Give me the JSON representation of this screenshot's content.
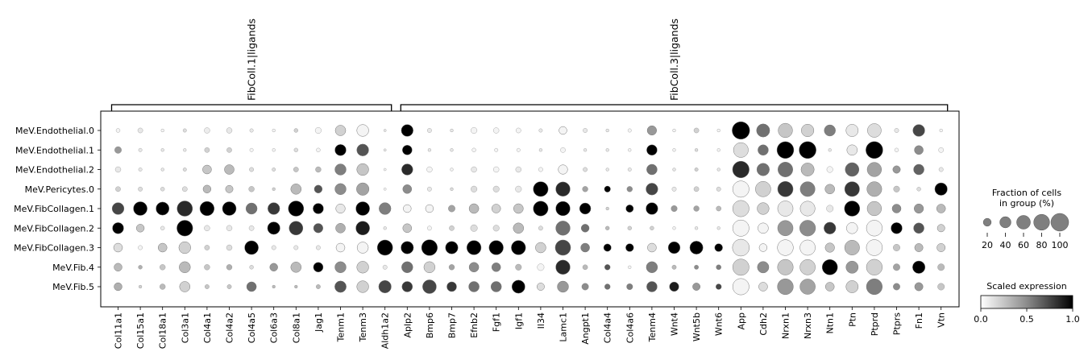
{
  "chart_data": {
    "type": "dotplot",
    "rows": [
      "MeV.Endothelial.0",
      "MeV.Endothelial.1",
      "MeV.Endothelial.2",
      "MeV.Pericytes.0",
      "MeV.FibCollagen.1",
      "MeV.FibCollagen.2",
      "MeV.FibCollagen.3",
      "MeV.Fib.4",
      "MeV.Fib.5"
    ],
    "columns": [
      "Col11a1",
      "Col15a1",
      "Col18a1",
      "Col3a1",
      "Col4a1",
      "Col4a2",
      "Col4a5",
      "Col6a3",
      "Col8a1",
      "Jag1",
      "Tenm1",
      "Tenm3",
      "Aldh1a2",
      "Aplp2",
      "Bmp6",
      "Bmp7",
      "Efnb2",
      "Fgf1",
      "Igf1",
      "Il34",
      "Lamc1",
      "Angpt1",
      "Col4a4",
      "Col4a6",
      "Tenm4",
      "Wnt4",
      "Wnt5b",
      "Wnt6",
      "App",
      "Cdh2",
      "Nrxn1",
      "Nrxn3",
      "Ntn1",
      "Ptn",
      "Ptprd",
      "Ptprs",
      "Fn1",
      "Vtn"
    ],
    "groups": [
      {
        "label": "FibColl.1|ligands",
        "start": 0,
        "end": 12
      },
      {
        "label": "FibColl.3|ligands",
        "start": 13,
        "end": 37
      }
    ],
    "fraction_pct": [
      [
        5,
        8,
        3,
        4,
        10,
        10,
        4,
        3,
        5,
        12,
        35,
        45,
        2,
        45,
        6,
        3,
        12,
        10,
        8,
        4,
        20,
        6,
        3,
        4,
        28,
        3,
        8,
        3,
        98,
        55,
        65,
        50,
        40,
        48,
        60,
        6,
        45,
        3
      ],
      [
        15,
        4,
        3,
        3,
        8,
        8,
        4,
        3,
        5,
        5,
        40,
        45,
        2,
        30,
        3,
        3,
        5,
        4,
        4,
        3,
        8,
        3,
        3,
        3,
        35,
        3,
        3,
        3,
        70,
        35,
        90,
        92,
        3,
        35,
        92,
        5,
        25,
        8
      ],
      [
        10,
        4,
        3,
        4,
        25,
        30,
        6,
        4,
        8,
        10,
        40,
        45,
        2,
        40,
        10,
        3,
        10,
        10,
        10,
        6,
        28,
        6,
        3,
        4,
        35,
        3,
        4,
        3,
        88,
        50,
        70,
        55,
        12,
        60,
        65,
        18,
        35,
        6
      ],
      [
        8,
        6,
        5,
        8,
        20,
        18,
        10,
        3,
        35,
        20,
        40,
        50,
        2,
        25,
        6,
        3,
        12,
        12,
        12,
        70,
        65,
        10,
        12,
        10,
        45,
        6,
        8,
        6,
        85,
        75,
        75,
        70,
        30,
        70,
        70,
        12,
        5,
        50
      ],
      [
        45,
        60,
        55,
        75,
        65,
        60,
        40,
        45,
        75,
        35,
        28,
        60,
        45,
        20,
        20,
        15,
        30,
        25,
        30,
        70,
        65,
        40,
        3,
        18,
        45,
        12,
        10,
        8,
        85,
        45,
        75,
        70,
        15,
        75,
        65,
        25,
        28,
        25
      ],
      [
        40,
        20,
        5,
        80,
        10,
        10,
        8,
        50,
        60,
        28,
        30,
        60,
        3,
        25,
        6,
        8,
        15,
        12,
        35,
        6,
        65,
        20,
        5,
        5,
        5,
        3,
        3,
        3,
        85,
        35,
        75,
        80,
        45,
        40,
        80,
        40,
        35,
        18
      ],
      [
        25,
        6,
        25,
        45,
        8,
        10,
        60,
        6,
        6,
        6,
        25,
        40,
        75,
        50,
        80,
        50,
        65,
        65,
        65,
        35,
        75,
        25,
        18,
        20,
        25,
        45,
        55,
        20,
        90,
        20,
        80,
        75,
        28,
        70,
        82,
        15,
        22,
        22
      ],
      [
        20,
        5,
        10,
        40,
        10,
        10,
        5,
        20,
        35,
        30,
        40,
        45,
        6,
        40,
        40,
        10,
        30,
        25,
        12,
        15,
        65,
        8,
        10,
        3,
        40,
        6,
        6,
        8,
        85,
        42,
        78,
        75,
        75,
        48,
        80,
        15,
        50,
        15
      ],
      [
        20,
        3,
        10,
        35,
        6,
        6,
        30,
        3,
        3,
        6,
        42,
        45,
        50,
        35,
        60,
        30,
        35,
        35,
        55,
        18,
        40,
        15,
        10,
        12,
        35,
        28,
        18,
        10,
        85,
        25,
        80,
        75,
        25,
        48,
        80,
        15,
        22,
        15
      ]
    ],
    "scaled_expression": [
      [
        0.05,
        0.1,
        0.05,
        0.15,
        0.08,
        0.1,
        0.1,
        0.05,
        0.2,
        0.05,
        0.2,
        0.05,
        0.1,
        1.0,
        0.1,
        0.1,
        0.05,
        0.05,
        0.05,
        0.1,
        0.05,
        0.1,
        0.1,
        0.05,
        0.45,
        0.05,
        0.2,
        0.05,
        1.0,
        0.6,
        0.25,
        0.2,
        0.55,
        0.1,
        0.15,
        0.1,
        0.75,
        0.05
      ],
      [
        0.45,
        0.1,
        0.1,
        0.1,
        0.2,
        0.2,
        0.05,
        0.05,
        0.15,
        0.05,
        1.0,
        0.7,
        0.1,
        1.0,
        0.1,
        0.1,
        0.05,
        0.05,
        0.05,
        0.1,
        0.05,
        0.1,
        0.1,
        0.05,
        1.0,
        0.05,
        0.15,
        0.05,
        0.15,
        0.6,
        1.0,
        1.0,
        0.1,
        0.1,
        1.0,
        0.05,
        0.5,
        0.05
      ],
      [
        0.1,
        0.1,
        0.1,
        0.15,
        0.25,
        0.3,
        0.15,
        0.15,
        0.25,
        0.3,
        0.55,
        0.25,
        0.05,
        0.85,
        0.05,
        0.05,
        0.1,
        0.05,
        0.1,
        0.05,
        0.05,
        0.15,
        0.1,
        0.1,
        0.6,
        0.1,
        0.2,
        0.1,
        0.85,
        0.6,
        0.6,
        0.3,
        0.05,
        0.65,
        0.4,
        0.45,
        0.65,
        0.1
      ],
      [
        0.2,
        0.15,
        0.15,
        0.15,
        0.3,
        0.25,
        0.25,
        0.2,
        0.3,
        0.7,
        0.5,
        0.4,
        0.05,
        0.5,
        0.1,
        0.15,
        0.15,
        0.15,
        0.1,
        1.0,
        0.85,
        0.4,
        1.0,
        0.5,
        0.75,
        0.1,
        0.2,
        0.15,
        0.05,
        0.2,
        0.8,
        0.55,
        0.3,
        0.8,
        0.35,
        0.25,
        0.15,
        1.0
      ],
      [
        0.75,
        1.0,
        1.0,
        0.85,
        1.0,
        1.0,
        0.6,
        0.8,
        1.0,
        1.0,
        0.1,
        1.0,
        0.55,
        0.05,
        0.05,
        0.4,
        0.3,
        0.2,
        0.25,
        1.0,
        1.0,
        1.0,
        0.2,
        1.0,
        1.0,
        0.45,
        0.4,
        0.3,
        0.15,
        0.2,
        0.1,
        0.1,
        0.1,
        1.0,
        0.25,
        0.5,
        0.45,
        0.3
      ],
      [
        1.0,
        0.25,
        0.1,
        1.0,
        0.1,
        0.1,
        0.1,
        1.0,
        0.8,
        0.7,
        0.35,
        0.9,
        0.1,
        0.25,
        0.05,
        0.2,
        0.15,
        0.15,
        0.3,
        0.15,
        0.6,
        0.6,
        0.3,
        0.2,
        0.2,
        0.05,
        0.1,
        0.1,
        0.05,
        0.05,
        0.45,
        0.5,
        0.8,
        0.05,
        0.05,
        1.0,
        0.7,
        0.2
      ],
      [
        0.15,
        0.05,
        0.25,
        0.2,
        0.2,
        0.15,
        1.0,
        0.1,
        0.1,
        0.1,
        0.05,
        0.05,
        1.0,
        1.0,
        1.0,
        1.0,
        1.0,
        1.0,
        1.0,
        0.2,
        0.75,
        0.55,
        1.0,
        1.0,
        0.15,
        1.0,
        1.0,
        1.0,
        0.1,
        0.05,
        0.05,
        0.05,
        0.25,
        0.3,
        0.05,
        0.25,
        0.3,
        0.2
      ],
      [
        0.3,
        0.35,
        0.25,
        0.3,
        0.25,
        0.35,
        0.15,
        0.45,
        0.3,
        1.0,
        0.5,
        0.2,
        0.1,
        0.6,
        0.2,
        0.4,
        0.5,
        0.55,
        0.3,
        0.05,
        0.85,
        0.3,
        0.7,
        0.05,
        0.55,
        0.3,
        0.5,
        0.55,
        0.2,
        0.5,
        0.25,
        0.2,
        1.0,
        0.45,
        0.2,
        0.4,
        1.0,
        0.3
      ],
      [
        0.35,
        0.2,
        0.3,
        0.2,
        0.25,
        0.25,
        0.6,
        0.3,
        0.3,
        0.3,
        0.7,
        0.2,
        0.75,
        0.8,
        0.75,
        0.8,
        0.6,
        0.6,
        1.0,
        0.15,
        0.45,
        0.5,
        0.6,
        0.55,
        0.7,
        0.9,
        0.45,
        0.75,
        0.05,
        0.15,
        0.45,
        0.4,
        0.25,
        0.2,
        0.55,
        0.5,
        0.45,
        0.25
      ]
    ],
    "size_legend": {
      "title": "Fraction of cells\nin group (%)",
      "values": [
        20,
        40,
        60,
        80,
        100
      ]
    },
    "color_legend": {
      "title": "Scaled expression",
      "ticks": [
        "0.0",
        "0.5",
        "1.0"
      ],
      "range": [
        0,
        1
      ]
    }
  }
}
